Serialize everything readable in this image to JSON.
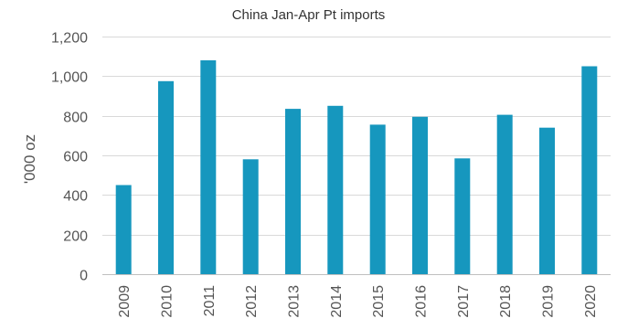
{
  "chart_data": {
    "type": "bar",
    "title": "China Jan-Apr Pt imports",
    "xlabel": "",
    "ylabel": "'000 oz",
    "categories": [
      "2009",
      "2010",
      "2011",
      "2012",
      "2013",
      "2014",
      "2015",
      "2016",
      "2017",
      "2018",
      "2019",
      "2020"
    ],
    "values": [
      450,
      975,
      1080,
      580,
      835,
      850,
      755,
      795,
      585,
      805,
      740,
      1050
    ],
    "ylim": [
      0,
      1200
    ],
    "yticks": [
      0,
      200,
      400,
      600,
      800,
      1000,
      1200
    ],
    "ytick_labels": [
      "0",
      "200",
      "400",
      "600",
      "800",
      "1,000",
      "1,200"
    ],
    "grid": true,
    "legend": "none",
    "bar_color": "#1697be",
    "grid_color": "#d9d9d9"
  }
}
